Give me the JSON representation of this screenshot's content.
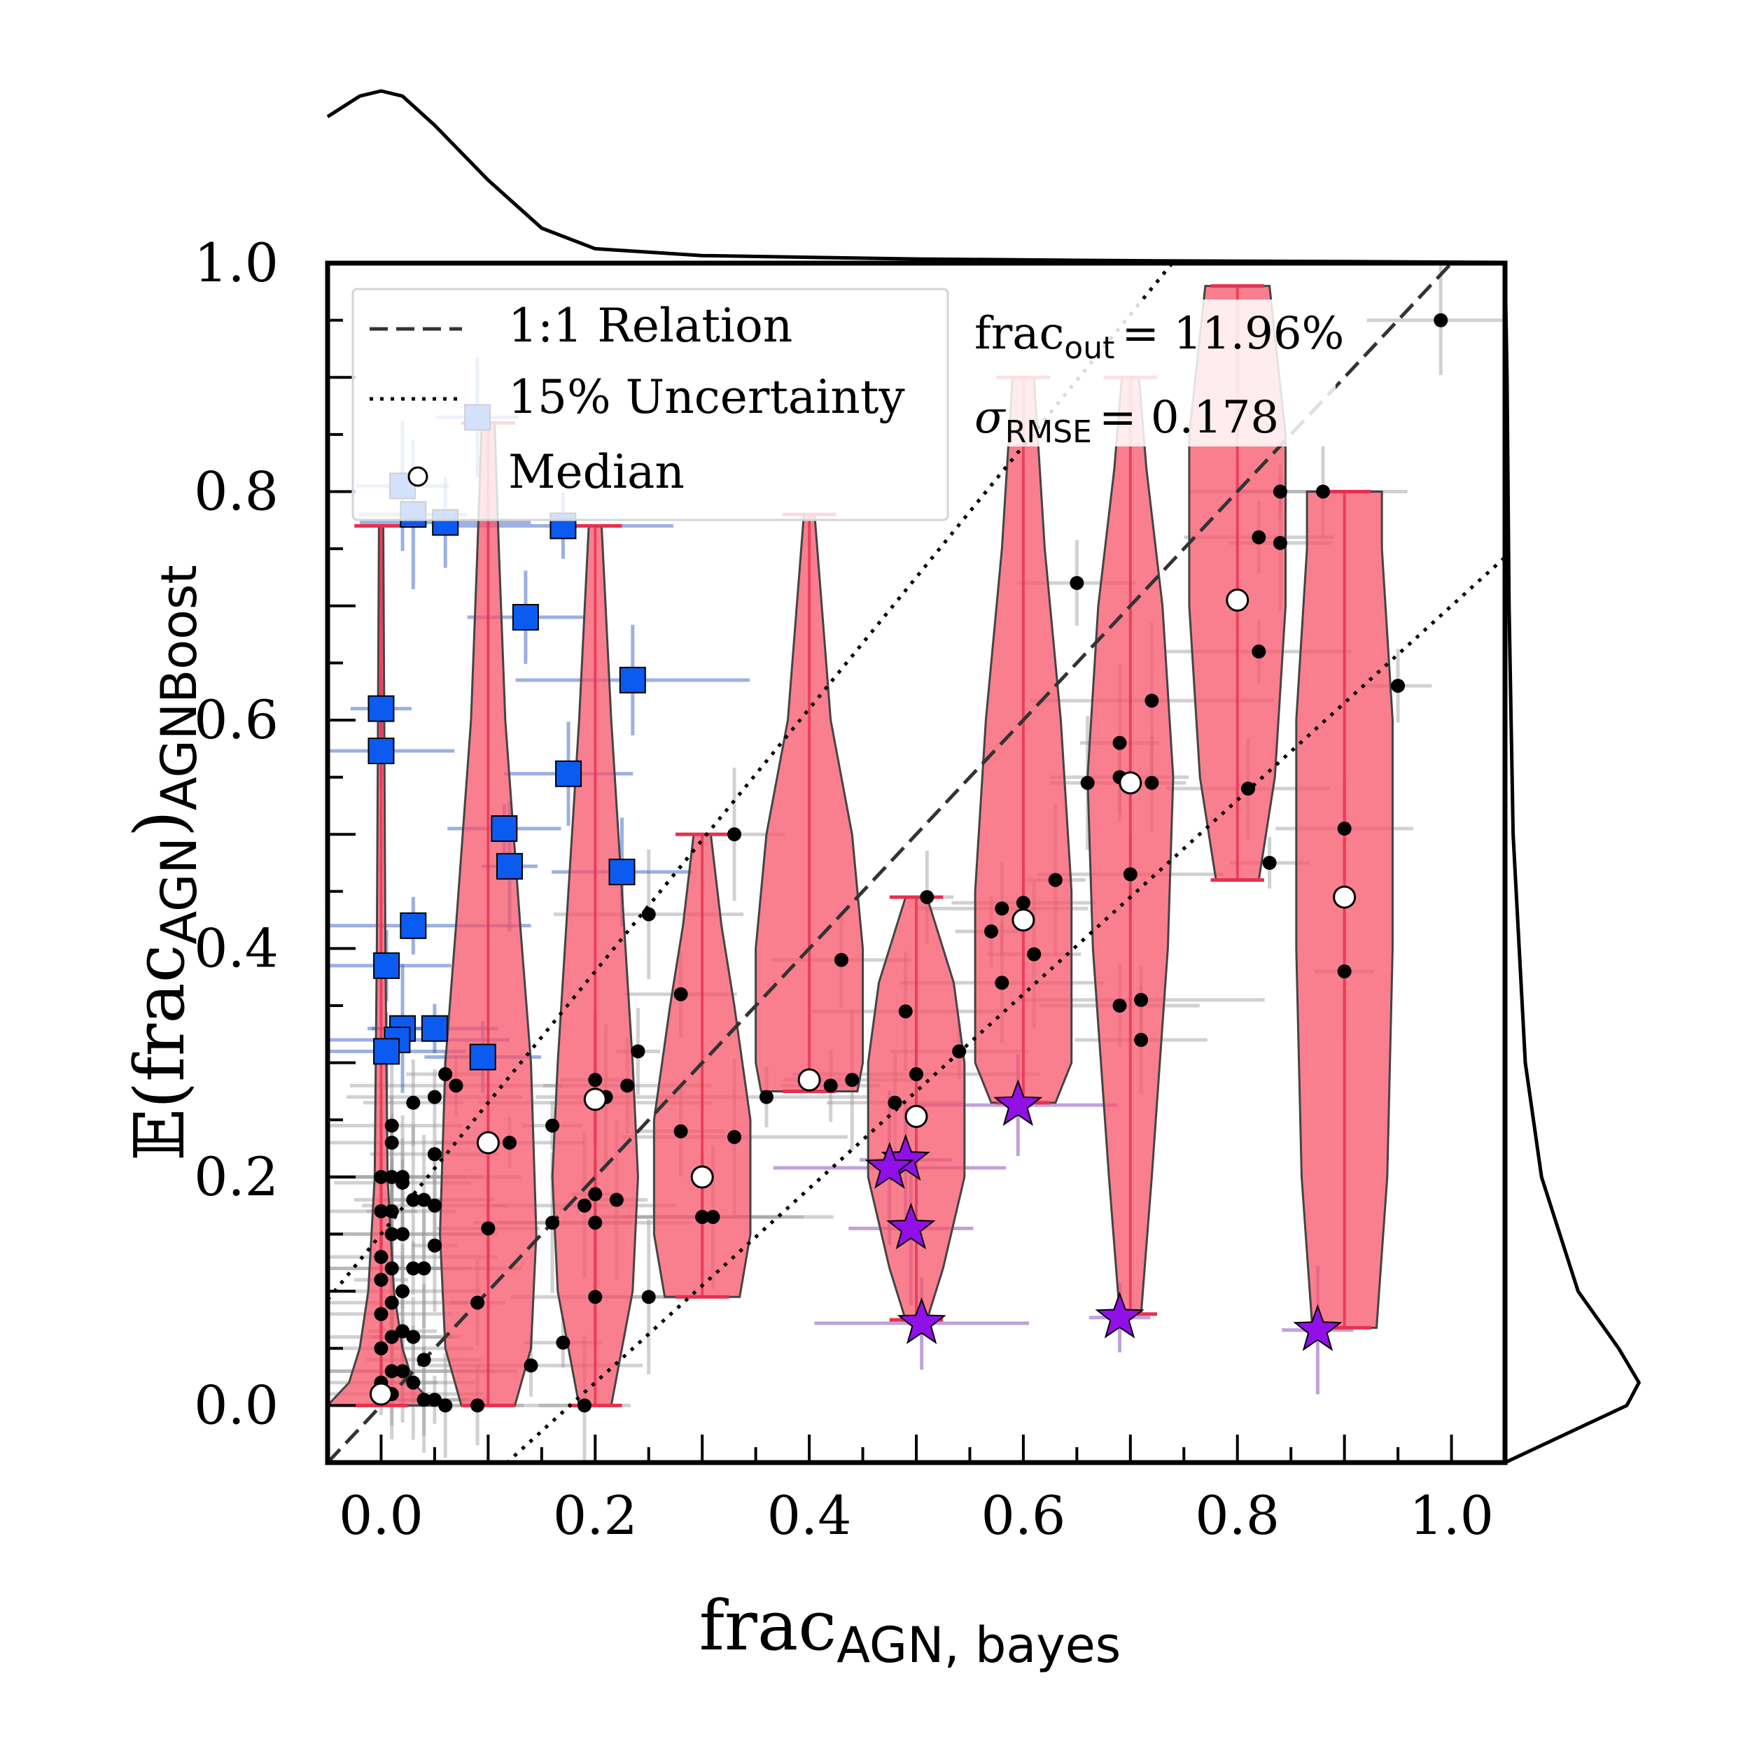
{
  "chart_data": {
    "type": "scatter",
    "title": "",
    "xlabel": "frac",
    "xlabel_sub": "AGN, bayes",
    "ylabel_prefix": "𝔼(frac",
    "ylabel_sub": "AGN",
    "ylabel_close": ")",
    "ylabel_sub2": "AGNBoost",
    "xlim": [
      -0.05,
      1.05
    ],
    "ylim": [
      -0.05,
      1.0
    ],
    "xticks": [
      "0.0",
      "0.2",
      "0.4",
      "0.6",
      "0.8",
      "1.0"
    ],
    "yticks": [
      "0.0",
      "0.2",
      "0.4",
      "0.6",
      "0.8",
      "1.0"
    ],
    "xtick_values": [
      0.0,
      0.2,
      0.4,
      0.6,
      0.8,
      1.0
    ],
    "ytick_values": [
      0.0,
      0.2,
      0.4,
      0.6,
      0.8,
      1.0
    ],
    "legend": {
      "location": "upper-left",
      "entries": [
        {
          "label": "1:1 Relation",
          "style": "dashed"
        },
        {
          "label": "15% Uncertainty",
          "style": "dotted"
        },
        {
          "label": "Median",
          "style": "marker"
        }
      ]
    },
    "stats": {
      "frac_out_label": "frac",
      "frac_out_sub": "out",
      "frac_out_value": "= 11.96%",
      "sigma_label": "σ",
      "sigma_sub": "RMSE",
      "sigma_value": "= 0.178"
    },
    "reference_lines": [
      {
        "name": "1:1 Relation",
        "slope": 1.0,
        "intercept": 0.0
      },
      {
        "name": "upper 15%",
        "slope": 1.15,
        "intercept": 0.15
      },
      {
        "name": "lower 15%",
        "slope": 0.85,
        "intercept": -0.15
      }
    ],
    "violins": [
      {
        "x": 0.0,
        "ymin": 0.0,
        "ymax": 0.77,
        "widths": [
          [
            0.0,
            0.05
          ],
          [
            0.02,
            0.03
          ],
          [
            0.05,
            0.02
          ],
          [
            0.1,
            0.012
          ],
          [
            0.2,
            0.006
          ],
          [
            0.4,
            0.004
          ],
          [
            0.77,
            0.002
          ]
        ]
      },
      {
        "x": 0.1,
        "ymin": 0.0,
        "ymax": 0.86,
        "widths": [
          [
            0.0,
            0.025
          ],
          [
            0.05,
            0.04
          ],
          [
            0.15,
            0.045
          ],
          [
            0.3,
            0.04
          ],
          [
            0.42,
            0.03
          ],
          [
            0.6,
            0.016
          ],
          [
            0.75,
            0.01
          ],
          [
            0.86,
            0.006
          ]
        ]
      },
      {
        "x": 0.2,
        "ymin": 0.0,
        "ymax": 0.77,
        "widths": [
          [
            0.0,
            0.015
          ],
          [
            0.1,
            0.035
          ],
          [
            0.2,
            0.04
          ],
          [
            0.3,
            0.035
          ],
          [
            0.45,
            0.025
          ],
          [
            0.6,
            0.015
          ],
          [
            0.77,
            0.006
          ]
        ]
      },
      {
        "x": 0.3,
        "ymin": 0.095,
        "ymax": 0.5,
        "widths": [
          [
            0.095,
            0.035
          ],
          [
            0.15,
            0.045
          ],
          [
            0.25,
            0.045
          ],
          [
            0.35,
            0.03
          ],
          [
            0.42,
            0.018
          ],
          [
            0.5,
            0.008
          ]
        ]
      },
      {
        "x": 0.4,
        "ymin": 0.275,
        "ymax": 0.78,
        "widths": [
          [
            0.275,
            0.045
          ],
          [
            0.3,
            0.05
          ],
          [
            0.4,
            0.05
          ],
          [
            0.5,
            0.04
          ],
          [
            0.6,
            0.02
          ],
          [
            0.78,
            0.005
          ]
        ]
      },
      {
        "x": 0.5,
        "ymin": 0.075,
        "ymax": 0.445,
        "widths": [
          [
            0.075,
            0.01
          ],
          [
            0.12,
            0.025
          ],
          [
            0.2,
            0.045
          ],
          [
            0.3,
            0.045
          ],
          [
            0.37,
            0.035
          ],
          [
            0.445,
            0.01
          ]
        ]
      },
      {
        "x": 0.6,
        "ymin": 0.265,
        "ymax": 0.9,
        "widths": [
          [
            0.265,
            0.03
          ],
          [
            0.3,
            0.045
          ],
          [
            0.45,
            0.045
          ],
          [
            0.6,
            0.035
          ],
          [
            0.75,
            0.02
          ],
          [
            0.9,
            0.01
          ]
        ]
      },
      {
        "x": 0.7,
        "ymin": 0.08,
        "ymax": 0.9,
        "widths": [
          [
            0.08,
            0.01
          ],
          [
            0.2,
            0.02
          ],
          [
            0.4,
            0.035
          ],
          [
            0.55,
            0.04
          ],
          [
            0.7,
            0.03
          ],
          [
            0.82,
            0.015
          ],
          [
            0.9,
            0.008
          ]
        ]
      },
      {
        "x": 0.8,
        "ymin": 0.46,
        "ymax": 0.98,
        "widths": [
          [
            0.46,
            0.02
          ],
          [
            0.55,
            0.035
          ],
          [
            0.7,
            0.045
          ],
          [
            0.85,
            0.045
          ],
          [
            0.98,
            0.03
          ]
        ]
      },
      {
        "x": 0.9,
        "ymin": 0.068,
        "ymax": 0.8,
        "widths": [
          [
            0.068,
            0.03
          ],
          [
            0.2,
            0.04
          ],
          [
            0.4,
            0.045
          ],
          [
            0.6,
            0.045
          ],
          [
            0.75,
            0.035
          ],
          [
            0.8,
            0.035
          ]
        ]
      }
    ],
    "medians": [
      {
        "x": 0.0,
        "y": 0.01
      },
      {
        "x": 0.1,
        "y": 0.23
      },
      {
        "x": 0.2,
        "y": 0.268
      },
      {
        "x": 0.3,
        "y": 0.2
      },
      {
        "x": 0.4,
        "y": 0.285
      },
      {
        "x": 0.5,
        "y": 0.253
      },
      {
        "x": 0.6,
        "y": 0.425
      },
      {
        "x": 0.7,
        "y": 0.545
      },
      {
        "x": 0.8,
        "y": 0.705
      },
      {
        "x": 0.9,
        "y": 0.445
      }
    ],
    "series": [
      {
        "name": "black points",
        "marker": "circle",
        "color": "#000000",
        "points": [
          [
            0.99,
            0.95
          ],
          [
            0.95,
            0.63
          ],
          [
            0.9,
            0.505
          ],
          [
            0.9,
            0.38
          ],
          [
            0.88,
            0.8
          ],
          [
            0.84,
            0.755
          ],
          [
            0.84,
            0.8
          ],
          [
            0.82,
            0.76
          ],
          [
            0.82,
            0.66
          ],
          [
            0.81,
            0.54
          ],
          [
            0.83,
            0.475
          ],
          [
            0.72,
            0.617
          ],
          [
            0.72,
            0.545
          ],
          [
            0.71,
            0.355
          ],
          [
            0.71,
            0.32
          ],
          [
            0.7,
            0.465
          ],
          [
            0.69,
            0.58
          ],
          [
            0.69,
            0.55
          ],
          [
            0.69,
            0.35
          ],
          [
            0.66,
            0.545
          ],
          [
            0.65,
            0.72
          ],
          [
            0.63,
            0.46
          ],
          [
            0.61,
            0.395
          ],
          [
            0.6,
            0.44
          ],
          [
            0.58,
            0.435
          ],
          [
            0.58,
            0.37
          ],
          [
            0.57,
            0.415
          ],
          [
            0.54,
            0.31
          ],
          [
            0.51,
            0.445
          ],
          [
            0.49,
            0.345
          ],
          [
            0.5,
            0.29
          ],
          [
            0.48,
            0.265
          ],
          [
            0.44,
            0.285
          ],
          [
            0.43,
            0.39
          ],
          [
            0.42,
            0.28
          ],
          [
            0.36,
            0.27
          ],
          [
            0.33,
            0.5
          ],
          [
            0.33,
            0.235
          ],
          [
            0.31,
            0.165
          ],
          [
            0.3,
            0.165
          ],
          [
            0.3,
            0.165
          ],
          [
            0.28,
            0.36
          ],
          [
            0.28,
            0.24
          ],
          [
            0.25,
            0.43
          ],
          [
            0.25,
            0.095
          ],
          [
            0.24,
            0.31
          ],
          [
            0.23,
            0.28
          ],
          [
            0.22,
            0.18
          ],
          [
            0.21,
            0.27
          ],
          [
            0.2,
            0.095
          ],
          [
            0.2,
            0.285
          ],
          [
            0.2,
            0.265
          ],
          [
            0.2,
            0.185
          ],
          [
            0.2,
            0.16
          ],
          [
            0.19,
            0.175
          ],
          [
            0.19,
            0.0
          ],
          [
            0.17,
            0.055
          ],
          [
            0.16,
            0.245
          ],
          [
            0.16,
            0.16
          ],
          [
            0.14,
            0.035
          ],
          [
            0.12,
            0.23
          ],
          [
            0.1,
            0.155
          ],
          [
            0.09,
            0.09
          ],
          [
            0.09,
            0.0
          ],
          [
            0.07,
            0.28
          ],
          [
            0.06,
            0.29
          ],
          [
            0.05,
            0.27
          ],
          [
            0.05,
            0.22
          ],
          [
            0.05,
            0.175
          ],
          [
            0.05,
            0.14
          ],
          [
            0.04,
            0.18
          ],
          [
            0.04,
            0.04
          ],
          [
            0.04,
            0.12
          ],
          [
            0.03,
            0.265
          ],
          [
            0.03,
            0.18
          ],
          [
            0.03,
            0.12
          ],
          [
            0.03,
            0.06
          ],
          [
            0.03,
            0.02
          ],
          [
            0.02,
            0.195
          ],
          [
            0.02,
            0.15
          ],
          [
            0.02,
            0.1
          ],
          [
            0.02,
            0.065
          ],
          [
            0.02,
            0.03
          ],
          [
            0.02,
            0.2
          ],
          [
            0.01,
            0.245
          ],
          [
            0.01,
            0.23
          ],
          [
            0.01,
            0.2
          ],
          [
            0.01,
            0.15
          ],
          [
            0.01,
            0.12
          ],
          [
            0.01,
            0.09
          ],
          [
            0.01,
            0.06
          ],
          [
            0.01,
            0.03
          ],
          [
            0.01,
            0.01
          ],
          [
            0.0,
            0.2
          ],
          [
            0.0,
            0.17
          ],
          [
            0.0,
            0.13
          ],
          [
            0.0,
            0.11
          ],
          [
            0.0,
            0.08
          ],
          [
            0.0,
            0.05
          ],
          [
            0.0,
            0.02
          ],
          [
            0.04,
            0.005
          ],
          [
            0.05,
            0.005
          ],
          [
            0.06,
            0.0
          ],
          [
            0.01,
            0.17
          ]
        ]
      },
      {
        "name": "blue squares",
        "marker": "square",
        "color": "#0b5bf0",
        "points": [
          [
            0.09,
            0.865
          ],
          [
            0.02,
            0.805
          ],
          [
            0.03,
            0.78
          ],
          [
            0.06,
            0.773
          ],
          [
            0.17,
            0.77
          ],
          [
            0.135,
            0.69
          ],
          [
            0.235,
            0.635
          ],
          [
            0.0,
            0.61
          ],
          [
            0.0,
            0.573
          ],
          [
            0.175,
            0.553
          ],
          [
            0.115,
            0.505
          ],
          [
            0.12,
            0.472
          ],
          [
            0.225,
            0.467
          ],
          [
            0.03,
            0.42
          ],
          [
            0.005,
            0.385
          ],
          [
            0.05,
            0.33
          ],
          [
            0.02,
            0.33
          ],
          [
            0.015,
            0.32
          ],
          [
            0.005,
            0.31
          ],
          [
            0.095,
            0.305
          ]
        ]
      },
      {
        "name": "purple stars",
        "marker": "star",
        "color": "#9210e8",
        "points": [
          [
            0.595,
            0.263
          ],
          [
            0.49,
            0.215
          ],
          [
            0.475,
            0.208
          ],
          [
            0.495,
            0.155
          ],
          [
            0.505,
            0.072
          ],
          [
            0.69,
            0.077
          ],
          [
            0.875,
            0.066
          ]
        ]
      }
    ],
    "marginal_top": [
      [
        -0.05,
        0.85
      ],
      [
        -0.02,
        0.97
      ],
      [
        0.0,
        1.0
      ],
      [
        0.02,
        0.97
      ],
      [
        0.05,
        0.8
      ],
      [
        0.1,
        0.48
      ],
      [
        0.15,
        0.2
      ],
      [
        0.2,
        0.08
      ],
      [
        0.3,
        0.04
      ],
      [
        0.5,
        0.02
      ],
      [
        0.7,
        0.01
      ],
      [
        0.9,
        0.005
      ],
      [
        1.05,
        0.0
      ]
    ],
    "marginal_right": [
      [
        -0.05,
        0.0
      ],
      [
        0.0,
        0.3
      ],
      [
        0.02,
        0.33
      ],
      [
        0.05,
        0.28
      ],
      [
        0.1,
        0.18
      ],
      [
        0.2,
        0.09
      ],
      [
        0.3,
        0.05
      ],
      [
        0.5,
        0.02
      ],
      [
        0.7,
        0.01
      ],
      [
        0.9,
        0.005
      ],
      [
        1.0,
        0.0
      ]
    ]
  }
}
